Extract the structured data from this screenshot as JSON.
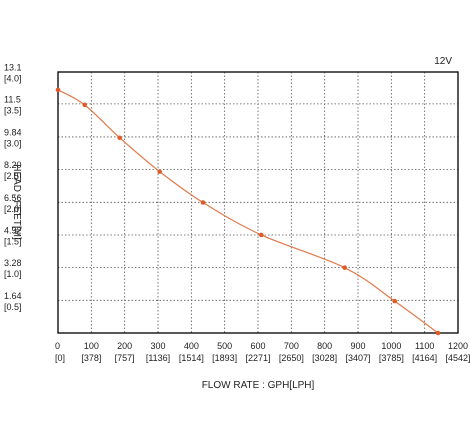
{
  "chart_data": {
    "type": "line",
    "annotation": "12V",
    "xlabel": "FLOW RATE : GPH[LPH]",
    "ylabel": "HEAD : FEET[M]",
    "xlim": [
      0,
      1200
    ],
    "ylim": [
      0,
      13.1
    ],
    "x_ticks": [
      {
        "value": 0,
        "label": "0",
        "sublabel": "[0]"
      },
      {
        "value": 100,
        "label": "100",
        "sublabel": "[378]"
      },
      {
        "value": 200,
        "label": "200",
        "sublabel": "[757]"
      },
      {
        "value": 300,
        "label": "300",
        "sublabel": "[1136]"
      },
      {
        "value": 400,
        "label": "400",
        "sublabel": "[1514]"
      },
      {
        "value": 500,
        "label": "500",
        "sublabel": "[1893]"
      },
      {
        "value": 600,
        "label": "600",
        "sublabel": "[2271]"
      },
      {
        "value": 700,
        "label": "700",
        "sublabel": "[2650]"
      },
      {
        "value": 800,
        "label": "800",
        "sublabel": "[3028]"
      },
      {
        "value": 900,
        "label": "900",
        "sublabel": "[3407]"
      },
      {
        "value": 1000,
        "label": "1000",
        "sublabel": "[3785]"
      },
      {
        "value": 1100,
        "label": "1100",
        "sublabel": "[4164]"
      },
      {
        "value": 1200,
        "label": "1200",
        "sublabel": "[4542]"
      }
    ],
    "y_ticks": [
      {
        "value": 13.1,
        "label": "13.1",
        "sublabel": "[4.0]"
      },
      {
        "value": 11.5,
        "label": "11.5",
        "sublabel": "[3.5]"
      },
      {
        "value": 9.84,
        "label": "9.84",
        "sublabel": "[3.0]"
      },
      {
        "value": 8.2,
        "label": "8.20",
        "sublabel": "[2.5]"
      },
      {
        "value": 6.56,
        "label": "6.56",
        "sublabel": "[2.0]"
      },
      {
        "value": 4.92,
        "label": "4.92",
        "sublabel": "[1.5]"
      },
      {
        "value": 3.28,
        "label": "3.28",
        "sublabel": "[1.0]"
      },
      {
        "value": 1.64,
        "label": "1.64",
        "sublabel": "[0.5]"
      }
    ],
    "series": [
      {
        "x": [
          0,
          80,
          185,
          305,
          435,
          610,
          860,
          1010,
          1140
        ],
        "y": [
          12.2,
          11.45,
          9.8,
          8.1,
          6.55,
          4.92,
          3.28,
          1.6,
          0
        ]
      }
    ],
    "grid": true,
    "line_color": "#e07a4c",
    "marker_color": "#e05a28",
    "grid_color": "#555555"
  }
}
